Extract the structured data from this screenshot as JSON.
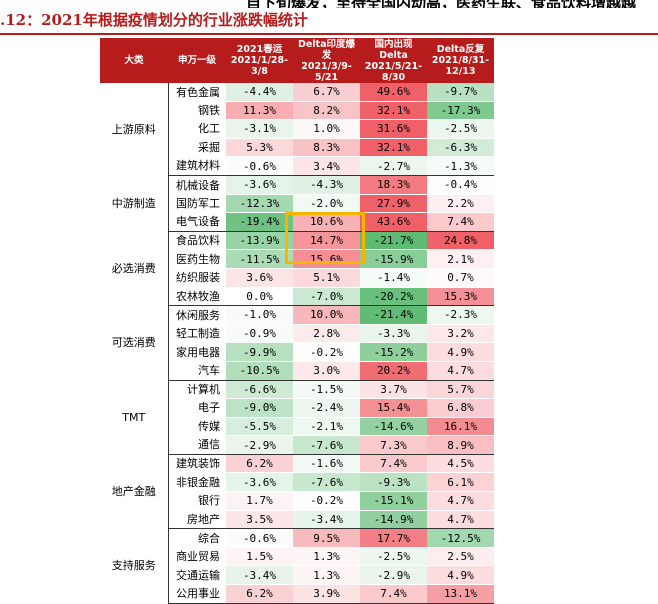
{
  "header": {
    "cut_line": "自下旬爆发，至待全国内动高，医药生联、食品饮料增越越",
    "figure_title": ".12：2021年根据疫情划分的行业涨跌幅统计"
  },
  "table": {
    "headers": [
      "大类",
      "申万一级",
      "2021春运\n2021/1/28-\n3/8",
      "Delta印度爆\n发\n2021/3/9-\n5/21",
      "国内出现\nDelta\n2021/5/21-\n8/30",
      "Delta反复\n2021/8/31-\n12/13"
    ],
    "colors": {
      "header_bg": "#b71c1c",
      "highlight_border": "#f7b500"
    },
    "groups": [
      {
        "category": "上游原料",
        "rows": [
          {
            "industry": "有色金属",
            "values": [
              "-4.4%",
              "6.7%",
              "49.6%",
              "-9.7%"
            ]
          },
          {
            "industry": "钢铁",
            "values": [
              "11.3%",
              "8.2%",
              "32.1%",
              "-17.3%"
            ]
          },
          {
            "industry": "化工",
            "values": [
              "-3.1%",
              "1.0%",
              "31.6%",
              "-2.5%"
            ]
          },
          {
            "industry": "采掘",
            "values": [
              "5.3%",
              "8.3%",
              "32.1%",
              "-6.3%"
            ]
          },
          {
            "industry": "建筑材料",
            "values": [
              "-0.6%",
              "3.4%",
              "-2.7%",
              "-1.3%"
            ]
          }
        ]
      },
      {
        "category": "中游制造",
        "rows": [
          {
            "industry": "机械设备",
            "values": [
              "-3.6%",
              "-4.3%",
              "18.3%",
              "-0.4%"
            ]
          },
          {
            "industry": "国防军工",
            "values": [
              "-12.3%",
              "-2.0%",
              "27.9%",
              "2.2%"
            ]
          },
          {
            "industry": "电气设备",
            "values": [
              "-19.4%",
              "10.6%",
              "43.6%",
              "7.4%"
            ]
          }
        ]
      },
      {
        "category": "必选消费",
        "rows": [
          {
            "industry": "食品饮料",
            "values": [
              "-13.9%",
              "14.7%",
              "-21.7%",
              "24.8%"
            ]
          },
          {
            "industry": "医药生物",
            "values": [
              "-11.5%",
              "15.6%",
              "-15.9%",
              "2.1%"
            ]
          },
          {
            "industry": "纺织服装",
            "values": [
              "3.6%",
              "5.1%",
              "-1.4%",
              "0.7%"
            ]
          },
          {
            "industry": "农林牧渔",
            "values": [
              "0.0%",
              "-7.0%",
              "-20.2%",
              "15.3%"
            ]
          }
        ]
      },
      {
        "category": "可选消费",
        "rows": [
          {
            "industry": "休闲服务",
            "values": [
              "-1.0%",
              "10.0%",
              "-21.4%",
              "-2.3%"
            ]
          },
          {
            "industry": "轻工制造",
            "values": [
              "-0.9%",
              "2.8%",
              "-3.3%",
              "3.2%"
            ]
          },
          {
            "industry": "家用电器",
            "values": [
              "-9.9%",
              "-0.2%",
              "-15.2%",
              "4.9%"
            ]
          },
          {
            "industry": "汽车",
            "values": [
              "-10.5%",
              "3.0%",
              "20.2%",
              "4.7%"
            ]
          }
        ]
      },
      {
        "category": "TMT",
        "rows": [
          {
            "industry": "计算机",
            "values": [
              "-6.6%",
              "-1.5%",
              "3.7%",
              "5.7%"
            ]
          },
          {
            "industry": "电子",
            "values": [
              "-9.0%",
              "-2.4%",
              "15.4%",
              "6.8%"
            ]
          },
          {
            "industry": "传媒",
            "values": [
              "-5.5%",
              "-2.1%",
              "-14.6%",
              "16.1%"
            ]
          },
          {
            "industry": "通信",
            "values": [
              "-2.9%",
              "-7.6%",
              "7.3%",
              "8.9%"
            ]
          }
        ]
      },
      {
        "category": "地产金融",
        "rows": [
          {
            "industry": "建筑装饰",
            "values": [
              "6.2%",
              "-1.6%",
              "7.4%",
              "4.5%"
            ]
          },
          {
            "industry": "非银金融",
            "values": [
              "-3.6%",
              "-7.6%",
              "-9.3%",
              "6.1%"
            ]
          },
          {
            "industry": "银行",
            "values": [
              "1.7%",
              "-0.2%",
              "-15.1%",
              "4.7%"
            ]
          },
          {
            "industry": "房地产",
            "values": [
              "3.5%",
              "-3.4%",
              "-14.9%",
              "4.7%"
            ]
          }
        ]
      },
      {
        "category": "支持服务",
        "rows": [
          {
            "industry": "综合",
            "values": [
              "-0.6%",
              "9.5%",
              "17.7%",
              "-12.5%"
            ]
          },
          {
            "industry": "商业贸易",
            "values": [
              "1.5%",
              "1.3%",
              "-2.5%",
              "2.5%"
            ]
          },
          {
            "industry": "交通运输",
            "values": [
              "-3.4%",
              "1.3%",
              "-2.9%",
              "4.9%"
            ]
          },
          {
            "industry": "公用事业",
            "values": [
              "6.2%",
              "3.9%",
              "7.4%",
              "13.1%"
            ]
          }
        ]
      }
    ]
  }
}
